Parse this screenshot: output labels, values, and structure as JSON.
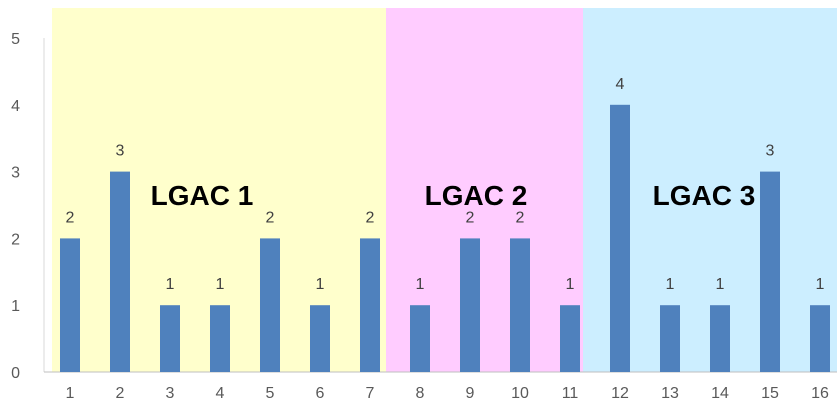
{
  "chart_data": {
    "type": "bar",
    "categories": [
      "1",
      "2",
      "3",
      "4",
      "5",
      "6",
      "7",
      "8",
      "9",
      "10",
      "11",
      "12",
      "13",
      "14",
      "15",
      "16"
    ],
    "values": [
      2,
      3,
      1,
      1,
      2,
      1,
      2,
      1,
      2,
      2,
      1,
      4,
      1,
      1,
      3,
      1
    ],
    "data_labels": [
      "2",
      "3",
      "1",
      "1",
      "2",
      "1",
      "2",
      "1",
      "2",
      "2",
      "1",
      "4",
      "1",
      "1",
      "3",
      "1"
    ],
    "y_ticks": [
      "0",
      "1",
      "2",
      "3",
      "4",
      "5"
    ],
    "ylim": [
      0,
      5
    ],
    "grid": false,
    "bar_color": "#4f81bd",
    "regions": [
      {
        "label": "LGAC 1",
        "from_category": 1,
        "to_category": 7,
        "color": "#ffffcc"
      },
      {
        "label": "LGAC 2",
        "from_category": 8,
        "to_category": 11,
        "color": "#ffccff"
      },
      {
        "label": "LGAC 3",
        "from_category": 12,
        "to_category": 16,
        "color": "#cceeff"
      }
    ]
  }
}
